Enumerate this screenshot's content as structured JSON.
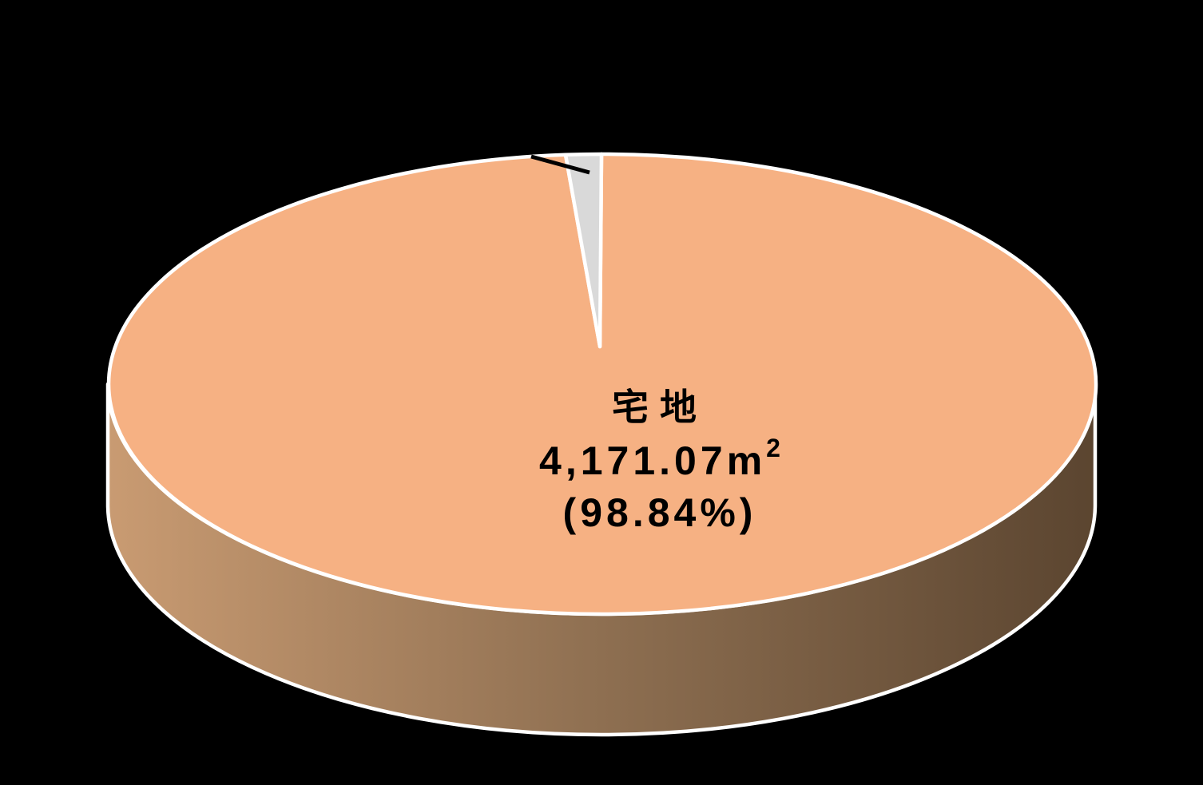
{
  "chart_data": {
    "type": "pie",
    "style": "3d",
    "title": "",
    "legend_position": "none",
    "start_angle_deg": 0,
    "direction": "clockwise",
    "unit": "㎡",
    "slices": [
      {
        "label": "宅地",
        "value": 4171.07,
        "percent": 98.84,
        "top_color": "#F6B183",
        "data_label_lines": [
          "宅地",
          "4,171.07㎡",
          "（98.84％）"
        ]
      },
      {
        "label": "",
        "value": null,
        "percent": 1.16,
        "top_color": "#D9D9D9",
        "data_label_lines": []
      }
    ]
  },
  "slice_label": {
    "name": "宅地",
    "area_value": "4,171.07",
    "unit_base": "m",
    "unit_exponent": "2",
    "percent_text": "(98.84%)"
  },
  "colors": {
    "background": "#000000",
    "pie_top_main": "#F6B183",
    "pie_top_small": "#D9D9D9",
    "side_gradient_left": "#C99B72",
    "side_gradient_mid": "#8E6F51",
    "side_gradient_right": "#5B4530",
    "slice_border": "#FFFFFF",
    "leader_line": "#000000",
    "label_text": "#000000"
  }
}
